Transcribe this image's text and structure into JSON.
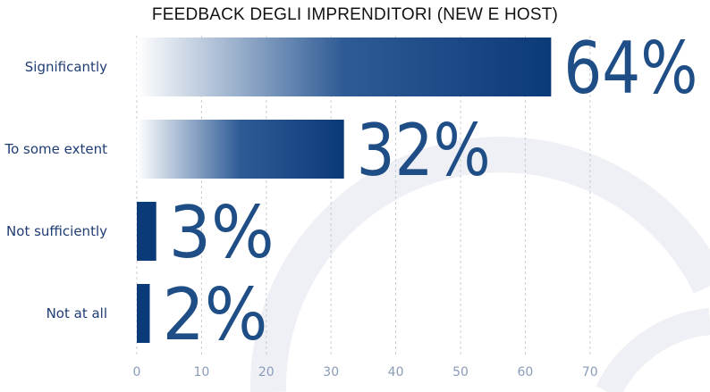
{
  "chart_data": {
    "type": "bar",
    "orientation": "horizontal",
    "title": "FEEDBACK DEGLI IMPRENDITORI (NEW E HOST)",
    "categories": [
      "Significantly",
      "To some extent",
      "Not sufficiently",
      "Not at all"
    ],
    "values": [
      64,
      32,
      3,
      2
    ],
    "value_labels": [
      "64%",
      "32%",
      "3%",
      "2%"
    ],
    "x_ticks": [
      0,
      10,
      20,
      30,
      40,
      50,
      60,
      70
    ],
    "x_tick_labels": [
      "0",
      "10",
      "20",
      "30",
      "40",
      "50",
      "60",
      "70"
    ],
    "xlim": [
      0,
      72
    ],
    "grid": "vertical dashed",
    "xlabel": "",
    "ylabel": "",
    "colors": {
      "bar_dark": "#0b3a78",
      "bar_light": "#ffffff",
      "value_text": "#1f4e86",
      "category_text": "#1f3d73",
      "tick_text": "#8a9bb8",
      "grid": "#c9cdd4"
    }
  }
}
